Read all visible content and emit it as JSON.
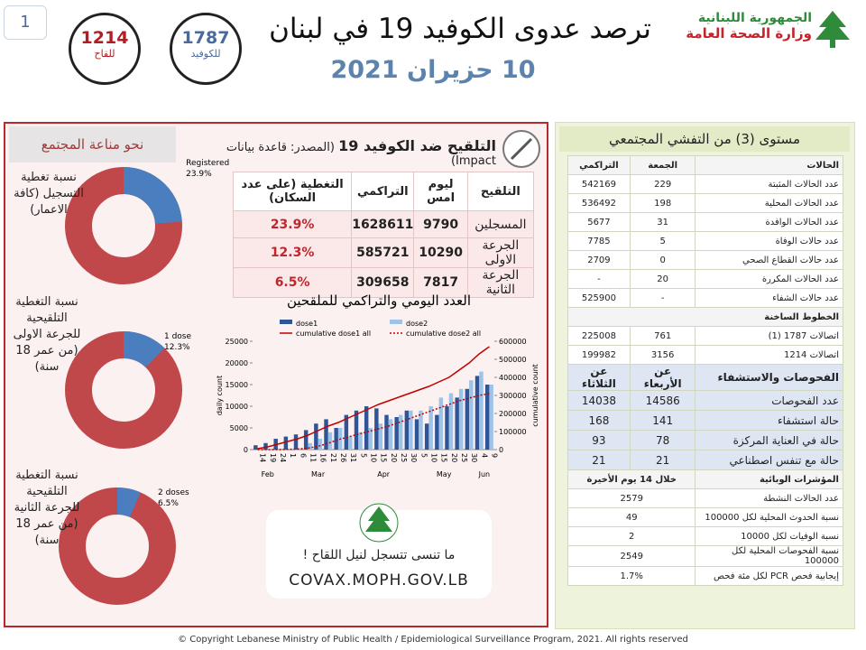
{
  "page_number": "1",
  "header": {
    "title": "ترصد عدوى الكوفيد 19 في لبنان",
    "date": "10 حزيران 2021",
    "ministry": [
      "الجمهورية اللبنانية",
      "وزارة الصحة العامة"
    ],
    "hotlines": [
      {
        "number": "1214",
        "label": "للقاح"
      },
      {
        "number": "1787",
        "label": "للكوفيد"
      }
    ]
  },
  "vaccination": {
    "title": "التلقيح ضد الكوفيد 19",
    "source": "(المصدر: قاعدة بيانات Impact)",
    "table": {
      "columns": [
        "التلقيح",
        "ليوم امس",
        "التراكمي",
        "التغطية (على عدد السكان)"
      ],
      "rows": [
        [
          "المسجلين",
          "9790",
          "1628611",
          "23.9%"
        ],
        [
          "الجرعة الاولى",
          "10290",
          "585721",
          "12.3%"
        ],
        [
          "الجرعة الثانية",
          "7817",
          "309658",
          "6.5%"
        ]
      ]
    },
    "reminder": "ما تنسى تتسجل لنيل اللقاح !",
    "website": "COVAX.MOPH.GOV.LB"
  },
  "herd_immunity_title": "نحو مناعة المجتمع",
  "chart_data": [
    {
      "type": "donut",
      "title": "نسبة تغطية التسجيل (كافة الاعمار)",
      "categories": [
        "Registered"
      ],
      "values": [
        23.9
      ],
      "value_labels": [
        "23.9%"
      ],
      "color": "#4a7ebf",
      "background_color": "#c0484b"
    },
    {
      "type": "donut",
      "title": "نسبة التغطية التلقيحية للجرعة الاولى (من عمر 18 سنة)",
      "categories": [
        "1 dose"
      ],
      "values": [
        12.3
      ],
      "value_labels": [
        "12.3%"
      ],
      "color": "#4a7ebf",
      "background_color": "#c0484b"
    },
    {
      "type": "donut",
      "title": "نسبة التغطية التلقيحية للجرعة الثانية (من عمر 18 سنة)",
      "categories": [
        "2 doses"
      ],
      "values": [
        6.5
      ],
      "value_labels": [
        "6.5%"
      ],
      "color": "#4a7ebf",
      "background_color": "#c0484b"
    },
    {
      "type": "combo",
      "title": "العدد اليومي والتراكمي للملقحين",
      "categories": [
        "14",
        "19",
        "24",
        "1",
        "6",
        "11",
        "16",
        "21",
        "26",
        "31",
        "5",
        "10",
        "15",
        "20",
        "25",
        "30",
        "5",
        "10",
        "15",
        "20",
        "25",
        "30",
        "4",
        "9"
      ],
      "month_labels": [
        "Feb",
        "Mar",
        "Apr",
        "May",
        "Jun"
      ],
      "ylabel": "daily count",
      "y2label": "cumulative count",
      "ylim": [
        0,
        25000
      ],
      "yticks": [
        0,
        5000,
        10000,
        15000,
        20000,
        25000
      ],
      "y2lim": [
        0,
        600000
      ],
      "y2ticks": [
        0,
        100000,
        200000,
        300000,
        400000,
        500000,
        600000
      ],
      "series": [
        {
          "name": "dose1",
          "kind": "bar",
          "color": "#2f5597",
          "values": [
            1000,
            1500,
            2500,
            3000,
            3500,
            4500,
            6000,
            7000,
            5000,
            8000,
            9000,
            10000,
            9500,
            8000,
            7500,
            9000,
            7000,
            6000,
            8000,
            10000,
            12000,
            14000,
            17000,
            15000
          ]
        },
        {
          "name": "dose2",
          "kind": "bar",
          "color": "#9dc3e6",
          "values": [
            0,
            0,
            0,
            0,
            0,
            1500,
            2500,
            4000,
            5000,
            3000,
            4000,
            5000,
            6000,
            7000,
            8000,
            9000,
            9000,
            10000,
            12000,
            13000,
            14000,
            16000,
            18000,
            15000
          ]
        },
        {
          "name": "cumulative dose1 all",
          "kind": "line",
          "dash": "solid",
          "axis": "y2",
          "color": "#c00000",
          "values": [
            5000,
            15000,
            30000,
            45000,
            60000,
            80000,
            105000,
            130000,
            150000,
            175000,
            200000,
            225000,
            250000,
            270000,
            290000,
            310000,
            330000,
            350000,
            375000,
            400000,
            440000,
            480000,
            530000,
            570000
          ]
        },
        {
          "name": "cumulative dose2 all",
          "kind": "line",
          "dash": "dotted",
          "axis": "y2",
          "color": "#c00000",
          "values": [
            0,
            0,
            0,
            1000,
            3000,
            8000,
            18000,
            35000,
            55000,
            70000,
            85000,
            100000,
            115000,
            130000,
            150000,
            170000,
            190000,
            210000,
            230000,
            250000,
            270000,
            285000,
            300000,
            310000
          ]
        }
      ]
    }
  ],
  "outbreak": {
    "title": "مستوى (3) من التفشي المجتمعي",
    "sections": [
      {
        "header": [
          "الحالات",
          "الجمعة",
          "التراكمي"
        ],
        "rows": [
          [
            "عدد الحالات المثبتة",
            "229",
            "542169"
          ],
          [
            "عدد الحالات المحلية",
            "198",
            "536492"
          ],
          [
            "عدد الحالات الوافدة",
            "31",
            "5677"
          ],
          [
            "عدد حالات الوفاة",
            "5",
            "7785"
          ],
          [
            "عدد حالات القطاع الصحي",
            "0",
            "2709"
          ],
          [
            "عدد الحالات المكررة",
            "20",
            "-"
          ],
          [
            "عدد حالات الشفاء",
            "-",
            "525900"
          ]
        ]
      },
      {
        "header": [
          "الخطوط الساخنة"
        ],
        "rows": [
          [
            "اتصالات 1787 (1)",
            "761",
            "225008"
          ],
          [
            "اتصالات 1214",
            "3156",
            "199982"
          ]
        ]
      },
      {
        "header": [
          "الفحوصات والاستشفاء",
          "عن الأربعاء",
          "عن الثلاثاء"
        ],
        "rows": [
          [
            "عدد الفحوصات",
            "14586",
            "14038"
          ],
          [
            "حالة استشفاء",
            "141",
            "168"
          ],
          [
            "حالة في العناية المركزة",
            "78",
            "93"
          ],
          [
            "حالة مع تنفس اصطناعي",
            "21",
            "21"
          ]
        ]
      },
      {
        "header": [
          "المؤشرات الوبائية",
          "خلال 14 يوم الأخيرة"
        ],
        "rows": [
          [
            "عدد الحالات النشطة",
            "2579"
          ],
          [
            "نسبة الحدوث المحلية لكل 100000",
            "49"
          ],
          [
            "نسبة الوفيات لكل 10000",
            "2"
          ],
          [
            "نسبة الفحوصات المحلية لكل 100000",
            "2549"
          ],
          [
            "إيجابية فحص PCR لكل مئة فحص",
            "1.7%"
          ]
        ]
      }
    ]
  },
  "footer": "© Copyright Lebanese Ministry of Public Health / Epidemiological Surveillance Program, 2021. All rights reserved"
}
